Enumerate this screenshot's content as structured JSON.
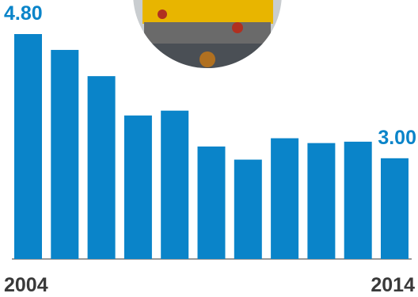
{
  "chart_data": {
    "type": "bar",
    "categories": [
      "2004",
      null,
      null,
      null,
      null,
      null,
      null,
      null,
      null,
      null,
      "2014"
    ],
    "values": [
      4.8,
      4.57,
      4.19,
      3.62,
      3.69,
      3.17,
      2.98,
      3.29,
      3.22,
      3.24,
      3.0
    ],
    "value_labels": [
      "4.80",
      null,
      null,
      null,
      null,
      null,
      null,
      null,
      null,
      null,
      "3.00"
    ],
    "color": "#0a84c9",
    "ylim": [
      1.54,
      4.8
    ]
  }
}
